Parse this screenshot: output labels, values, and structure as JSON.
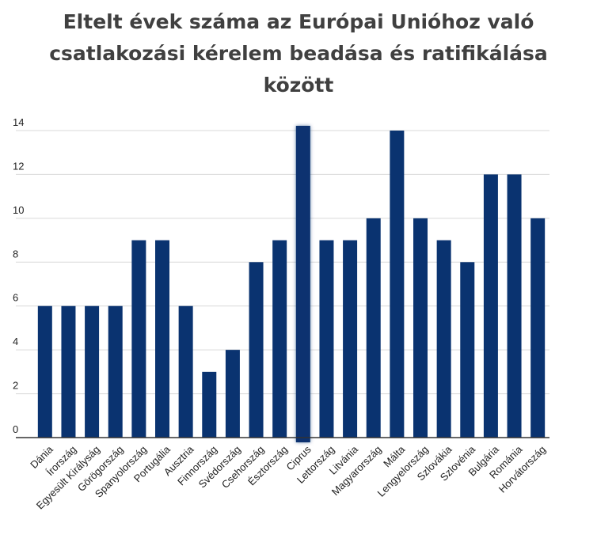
{
  "chart_data": {
    "type": "bar",
    "title_lines": [
      "Eltelt évek száma az Európai Unióhoz való",
      "csatlakozási kérelem beadása és ratifikálása",
      "között"
    ],
    "categories": [
      "Dánia",
      "Írország",
      "Egyesült Királyság",
      "Görögország",
      "Spanyolország",
      "Portugália",
      "Ausztria",
      "Finnország",
      "Svédország",
      "Csehország",
      "Észtország",
      "Ciprus",
      "Lettország",
      "Litvánia",
      "Magyarország",
      "Málta",
      "Lengyelország",
      "Szlovákia",
      "Szlovénia",
      "Bulgária",
      "Románia",
      "Horvátország"
    ],
    "values": [
      6,
      6,
      6,
      6,
      9,
      9,
      6,
      3,
      4,
      8,
      9,
      14,
      9,
      9,
      10,
      14,
      10,
      9,
      8,
      12,
      12,
      10
    ],
    "highlight_category": "Ciprus",
    "bar_color": "#0a3370",
    "ylim": [
      0,
      14
    ],
    "yticks": [
      0,
      2,
      4,
      6,
      8,
      10,
      12,
      14
    ],
    "grid": true,
    "legend": "none"
  }
}
